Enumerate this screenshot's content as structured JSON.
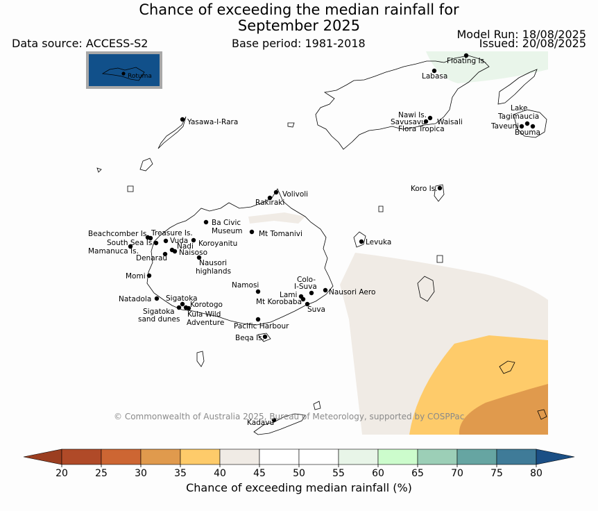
{
  "title": {
    "line1": "Chance of exceeding the median rainfall for",
    "line2": "September 2025"
  },
  "meta": {
    "data_source": "Data source: ACCESS-S2",
    "base_period": "Base period: 1981-2018",
    "model_run": "Model Run: 18/08/2025",
    "issued": "Issued: 20/08/2025"
  },
  "inset": {
    "label": "Rotuma"
  },
  "places": {
    "floating": "Floating Is.",
    "labasa": "Labasa",
    "yasawa": "Yasawa-I-Rara",
    "nawi": "Nawi Is.",
    "savusavu": "Savusavu",
    "waisali": "Waisali",
    "flora": "Flora Tropica",
    "lake1": "Lake",
    "lake2": "Tagimaucia",
    "taveuni": "Taveuni",
    "bouma": "Bouma",
    "koro": "Koro Is.",
    "volivoli": "Volivoli",
    "rakiraki": "Rakiraki",
    "beachcomber": "Beachcomber Is.",
    "treasure": "Treasure Is.",
    "bacivic1": "Ba Civic",
    "bacivic2": "Museum",
    "mttomanivi": "Mt Tomanivi",
    "levuka": "Levuka",
    "southsea": "South Sea Is.",
    "vuda": "Vuda",
    "koroyanitu": "Koroyanitu",
    "nadi": "Nadi",
    "mamanuca": "Mamanuca Is.",
    "naisoso": "Naisoso",
    "denarau": "Denarau",
    "nausori1": "Nausori",
    "nausori2": "highlands",
    "momi": "Momi",
    "colo1": "Colo-",
    "colo2": "I-Suva",
    "namosi": "Namosi",
    "nausoriaero": "Nausori Aero",
    "lami": "Lami",
    "natadola": "Natadola",
    "sigatoka": "Sigatoka",
    "mtkorobaba": "Mt Korobaba",
    "korotogo": "Korotogo",
    "suva": "Suva",
    "sigdunes1": "Sigatoka",
    "sigdunes2": "sand dunes",
    "kula1": "Kula Wild",
    "kula2": "Adventure",
    "pacific": "Pacific Harbour",
    "beqa": "Beqa Is.",
    "kadavu": "Kadavu"
  },
  "copyright": "© Commonwealth of Australia 2025, Bureau of Meteorology, supported by COSPPac",
  "colorbar": {
    "ticks": [
      "20",
      "25",
      "30",
      "35",
      "40",
      "45",
      "50",
      "55",
      "60",
      "65",
      "70",
      "75",
      "80"
    ],
    "colors": [
      "#b04a28",
      "#cd6633",
      "#e09a4d",
      "#fecb6a",
      "#f0ebe5",
      "#ffffff",
      "#ffffff",
      "#e8f5e8",
      "#ccfccc",
      "#9ccfb7",
      "#66a5a2",
      "#3f7b98"
    ],
    "under_color": "#9b3e20",
    "over_color": "#1b4f85",
    "label": "Chance of exceeding median rainfall (%)"
  }
}
